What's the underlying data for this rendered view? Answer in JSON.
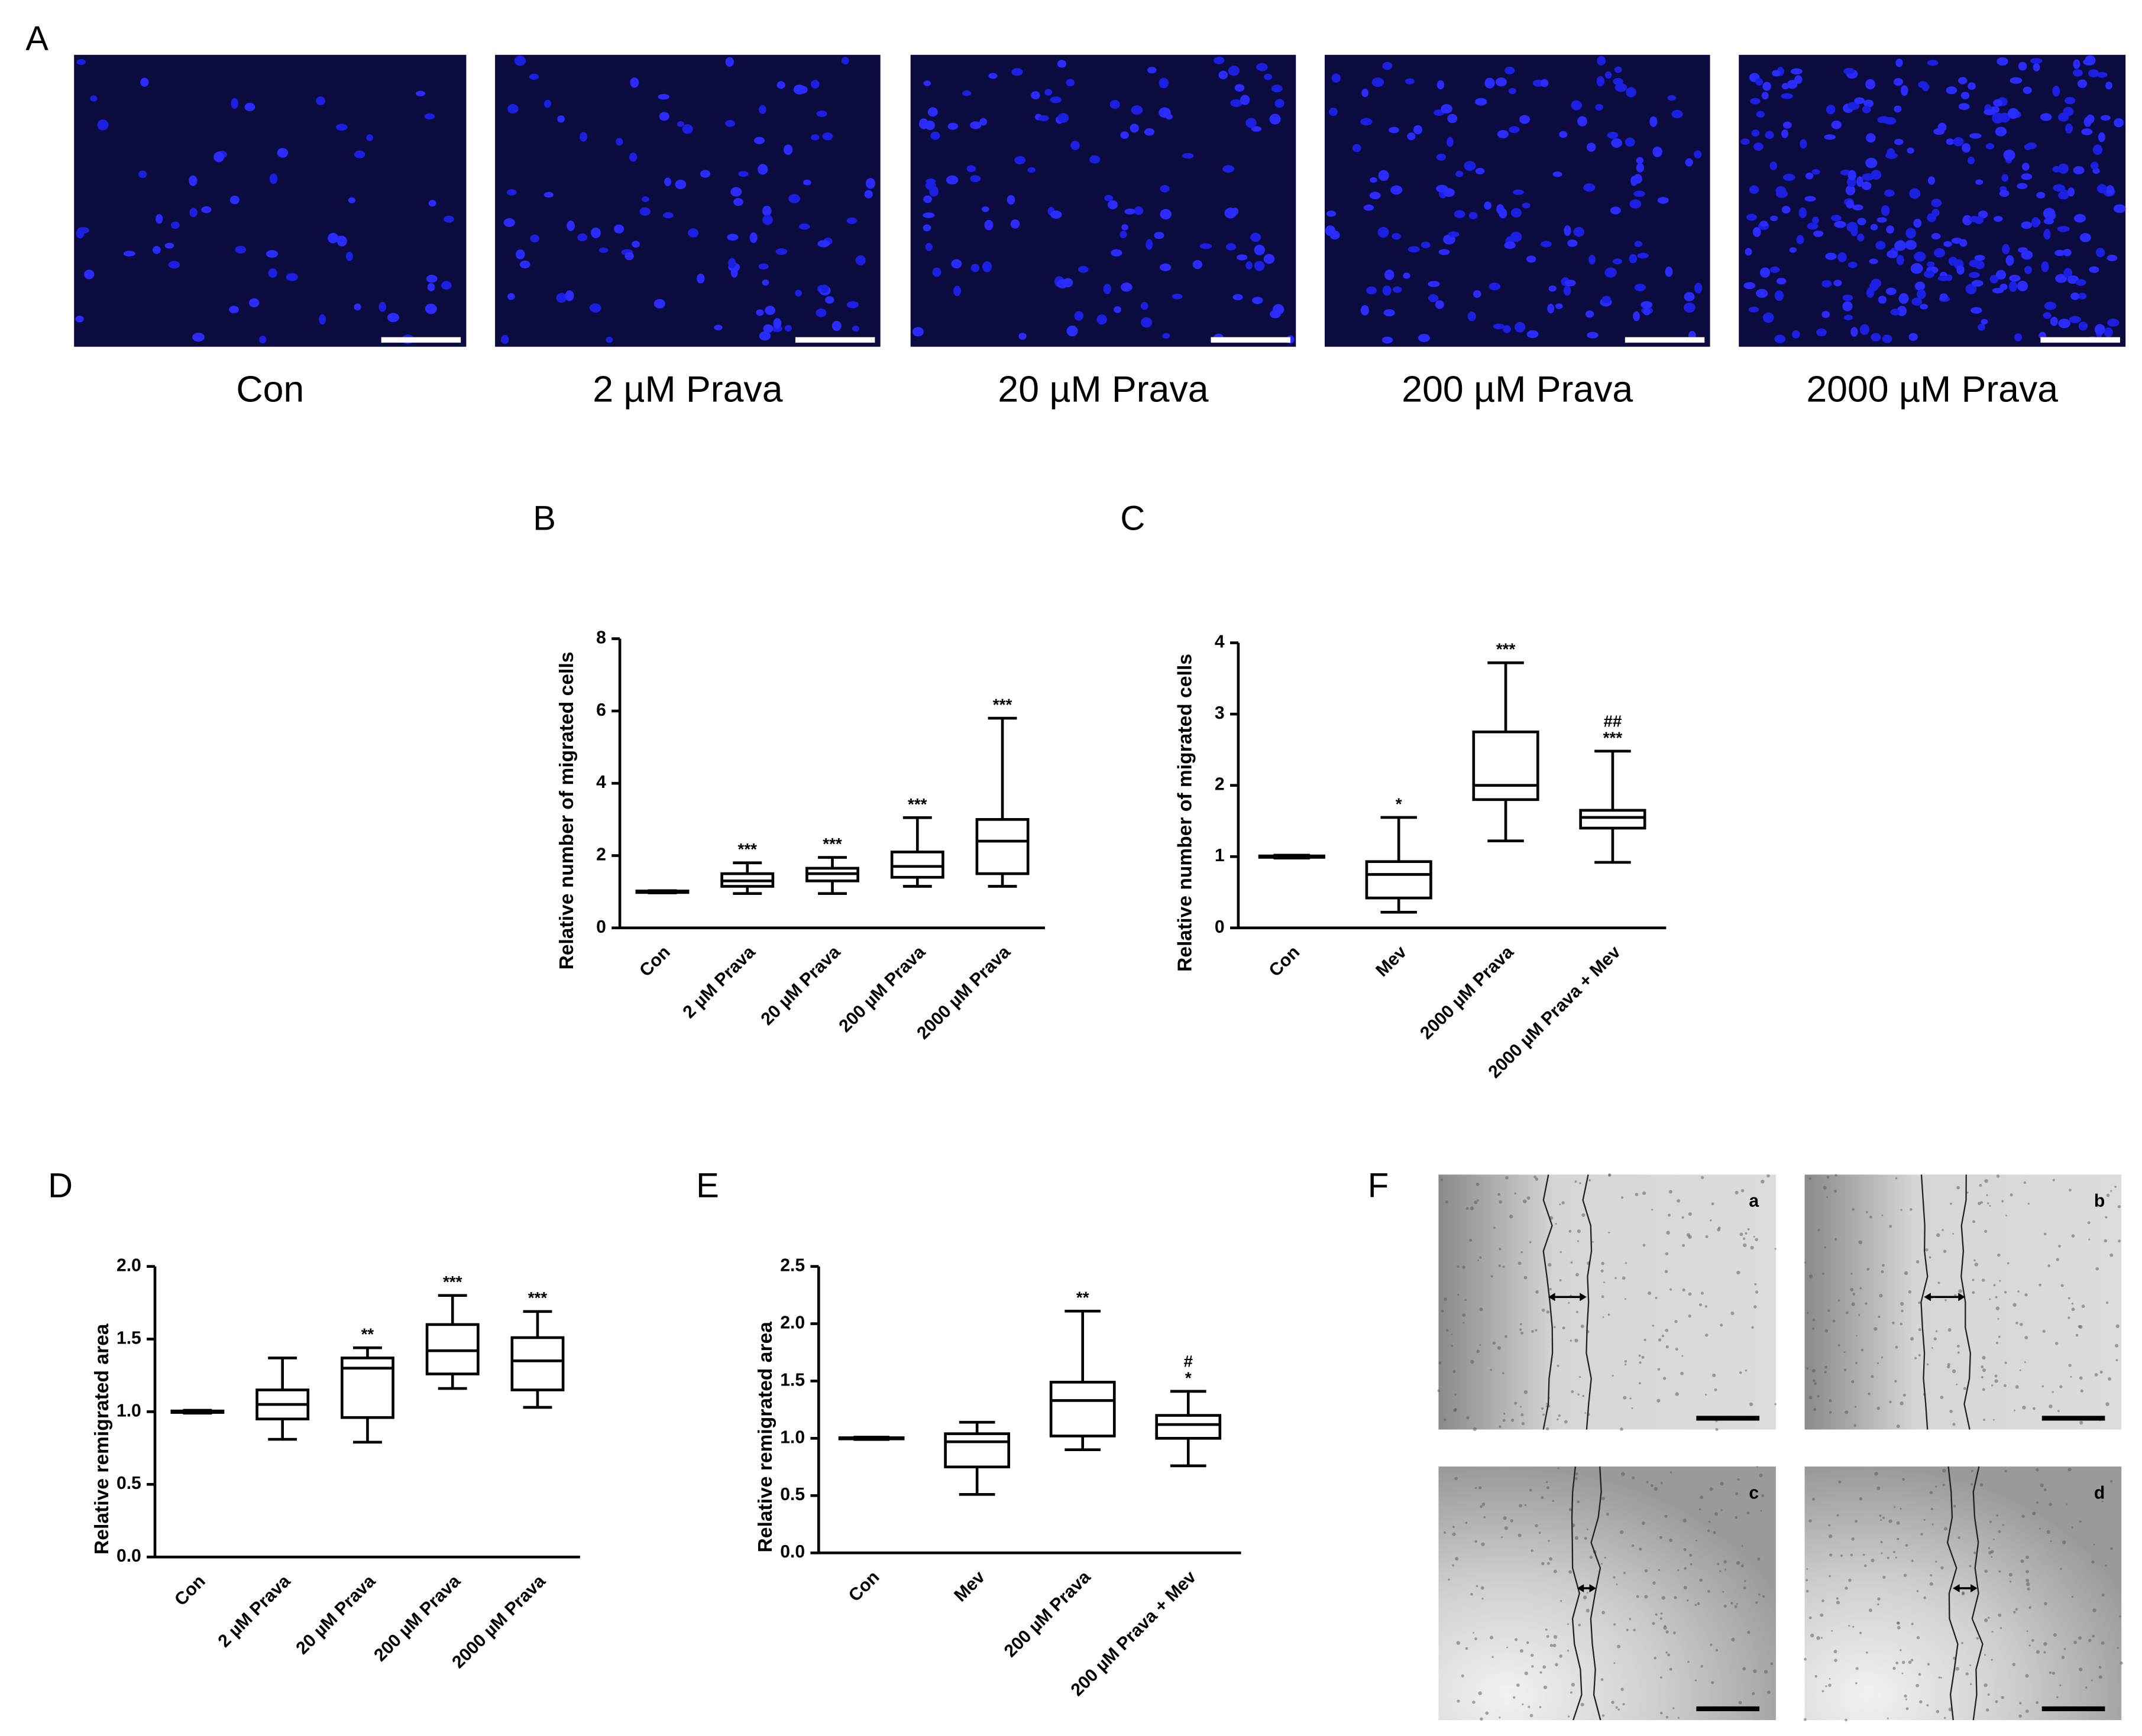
{
  "panel_labels": [
    "A",
    "B",
    "C",
    "D",
    "E",
    "F"
  ],
  "panel_a_captions": [
    "Con",
    "2 µM Prava",
    "20 µM Prava",
    "200 µM Prava",
    "2000 µM Prava"
  ],
  "panel_f_labels": [
    "a",
    "b",
    "c",
    "d"
  ],
  "chart_data": [
    {
      "type": "box",
      "y_label": "Relative number of migrated cells",
      "categories": [
        "Con",
        "2 µM Prava",
        "20 µM Prava",
        "200 µM Prava",
        "2000 µM Prava"
      ],
      "min": [
        0.97,
        0.95,
        0.95,
        1.15,
        1.15
      ],
      "q1": [
        0.98,
        1.15,
        1.3,
        1.4,
        1.5
      ],
      "median": [
        1,
        1.3,
        1.5,
        1.7,
        2.4
      ],
      "q3": [
        1.02,
        1.5,
        1.65,
        2.1,
        3.0
      ],
      "max": [
        1.03,
        1.8,
        1.95,
        3.05,
        5.8
      ],
      "annotations": [
        null,
        [
          "***"
        ],
        [
          "***"
        ],
        [
          "***"
        ],
        [
          "***"
        ]
      ],
      "ylim": [
        0,
        8
      ],
      "yticks": [
        0,
        2,
        4,
        6,
        8
      ]
    },
    {
      "type": "box",
      "y_label": "Relative number of migrated cells",
      "categories": [
        "Con",
        "Mev",
        "2000 µM Prava",
        "2000 µM Prava + Mev"
      ],
      "min": [
        0.98,
        0.22,
        1.22,
        0.92
      ],
      "q1": [
        0.99,
        0.42,
        1.8,
        1.4
      ],
      "median": [
        1,
        0.75,
        2.0,
        1.55
      ],
      "q3": [
        1.01,
        0.93,
        2.75,
        1.65
      ],
      "max": [
        1.02,
        1.55,
        3.72,
        2.48
      ],
      "annotations": [
        null,
        [
          "*"
        ],
        [
          "***"
        ],
        [
          "##",
          "***"
        ]
      ],
      "ylim": [
        0,
        4
      ],
      "yticks": [
        0,
        1,
        2,
        3,
        4
      ]
    },
    {
      "type": "box",
      "y_label": "Relative remigrated area",
      "categories": [
        "Con",
        "2 µM Prava",
        "20 µM Prava",
        "200 µM Prava",
        "2000 µM Prava"
      ],
      "min": [
        0.99,
        0.81,
        0.79,
        1.16,
        1.03
      ],
      "q1": [
        0.995,
        0.95,
        0.96,
        1.26,
        1.15
      ],
      "median": [
        1,
        1.05,
        1.3,
        1.42,
        1.35
      ],
      "q3": [
        1.005,
        1.15,
        1.37,
        1.6,
        1.51
      ],
      "max": [
        1.01,
        1.37,
        1.44,
        1.8,
        1.69
      ],
      "annotations": [
        null,
        null,
        [
          "**"
        ],
        [
          "***"
        ],
        [
          "***"
        ]
      ],
      "ylim": [
        0,
        2
      ],
      "yticks": [
        {
          "value": 0,
          "label": "0.0"
        },
        {
          "value": 0.5,
          "label": "0.5"
        },
        {
          "value": 1,
          "label": "1.0"
        },
        {
          "value": 1.5,
          "label": "1.5"
        },
        {
          "value": 2,
          "label": "2.0"
        }
      ]
    },
    {
      "type": "box",
      "y_label": "Relative remigrated area",
      "categories": [
        "Con",
        "Mev",
        "200 µM Prava",
        "200 µM Prava + Mev"
      ],
      "min": [
        0.99,
        0.51,
        0.9,
        0.76
      ],
      "q1": [
        0.995,
        0.75,
        1.02,
        1.0
      ],
      "median": [
        1,
        0.97,
        1.33,
        1.12
      ],
      "q3": [
        1.005,
        1.04,
        1.49,
        1.2
      ],
      "max": [
        1.01,
        1.14,
        2.11,
        1.41
      ],
      "annotations": [
        null,
        null,
        [
          "**"
        ],
        [
          "#",
          "*"
        ]
      ],
      "ylim": [
        0,
        2.5
      ],
      "yticks": [
        {
          "value": 0,
          "label": "0.0"
        },
        {
          "value": 0.5,
          "label": "0.5"
        },
        {
          "value": 1,
          "label": "1.0"
        },
        {
          "value": 1.5,
          "label": "1.5"
        },
        {
          "value": 2,
          "label": "2.0"
        },
        {
          "value": 2.5,
          "label": "2.5"
        }
      ]
    }
  ]
}
